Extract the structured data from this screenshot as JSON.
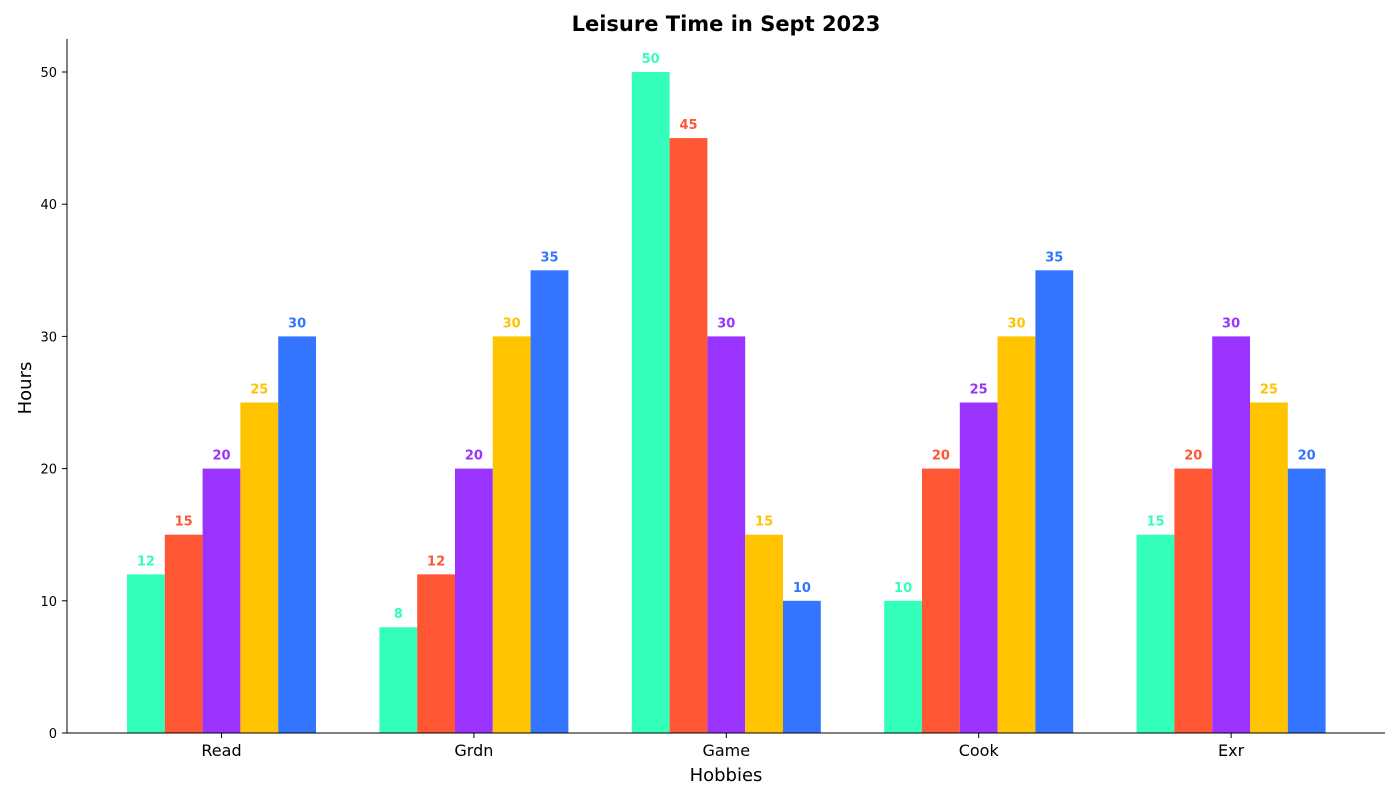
{
  "chart_data": {
    "type": "bar",
    "title": "Leisure Time in Sept 2023",
    "xlabel": "Hobbies",
    "ylabel": "Hours",
    "categories": [
      "Read",
      "Grdn",
      "Game",
      "Cook",
      "Exr"
    ],
    "series": [
      {
        "values": [
          12,
          8,
          50,
          10,
          15
        ],
        "color": "#33ffbb"
      },
      {
        "values": [
          15,
          12,
          45,
          20,
          20
        ],
        "color": "#ff5733"
      },
      {
        "values": [
          20,
          20,
          30,
          25,
          30
        ],
        "color": "#9b33ff"
      },
      {
        "values": [
          25,
          30,
          15,
          30,
          25
        ],
        "color": "#ffc300"
      },
      {
        "values": [
          30,
          35,
          10,
          35,
          20
        ],
        "color": "#3375ff"
      }
    ],
    "ylim": [
      0,
      52.5
    ],
    "yticks": [
      0,
      10,
      20,
      30,
      40,
      50
    ],
    "grid": false,
    "data_labels": true
  }
}
